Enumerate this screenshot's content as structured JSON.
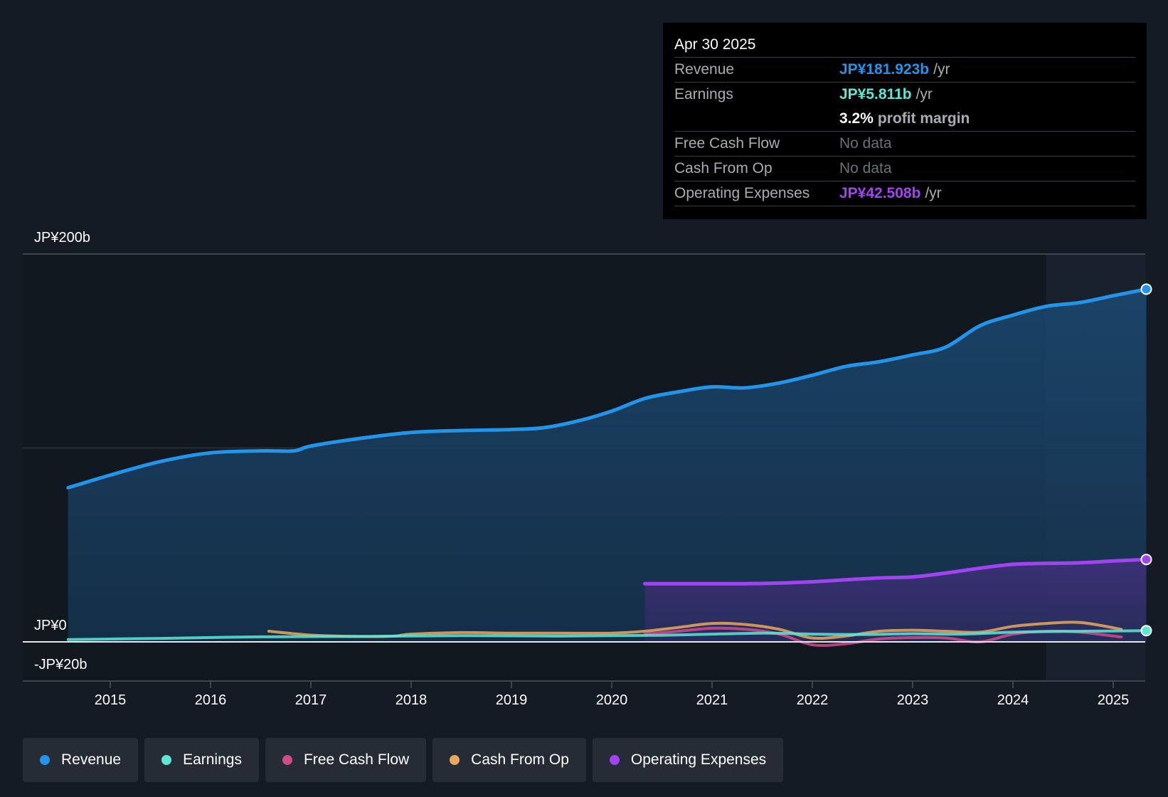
{
  "tooltip": {
    "date": "Apr 30 2025",
    "rows": {
      "revenue": {
        "label": "Revenue",
        "value": "JP¥181.923b",
        "unit": "/yr",
        "color": "#2394e8"
      },
      "earnings": {
        "label": "Earnings",
        "value": "JP¥5.811b",
        "unit": "/yr",
        "color": "#5ee6d5"
      },
      "margin": {
        "value": "3.2%",
        "unit": "profit margin"
      },
      "fcf": {
        "label": "Free Cash Flow",
        "value": "No data"
      },
      "cfo": {
        "label": "Cash From Op",
        "value": "No data"
      },
      "opex": {
        "label": "Operating Expenses",
        "value": "JP¥42.508b",
        "unit": "/yr",
        "color": "#a044f0"
      }
    }
  },
  "legend": [
    {
      "label": "Revenue",
      "color": "#2394e8"
    },
    {
      "label": "Earnings",
      "color": "#5ee6d5"
    },
    {
      "label": "Free Cash Flow",
      "color": "#d14b8c"
    },
    {
      "label": "Cash From Op",
      "color": "#e8a95e"
    },
    {
      "label": "Operating Expenses",
      "color": "#a044f0"
    }
  ],
  "chart_data": {
    "type": "line",
    "title": "",
    "xlabel": "",
    "ylabel": "",
    "y_tick_labels": [
      "JP¥200b",
      "JP¥0",
      "-JP¥20b"
    ],
    "ylim": [
      -20,
      200
    ],
    "xlim": [
      2014.1,
      2025.4
    ],
    "x_ticks": [
      2015,
      2016,
      2017,
      2018,
      2019,
      2020,
      2021,
      2022,
      2023,
      2024,
      2025
    ],
    "forecast_start": 2024.33,
    "series": [
      {
        "name": "Revenue",
        "color": "#2394e8",
        "fill": true,
        "x": [
          2014.58,
          2015.0,
          2015.5,
          2016.0,
          2016.5,
          2016.83,
          2017.0,
          2017.5,
          2018.0,
          2018.5,
          2019.0,
          2019.33,
          2019.67,
          2020.0,
          2020.33,
          2020.67,
          2021.0,
          2021.33,
          2021.67,
          2022.0,
          2022.33,
          2022.67,
          2023.0,
          2023.33,
          2023.67,
          2024.0,
          2024.33,
          2024.67,
          2025.0,
          2025.33
        ],
        "y": [
          79.5,
          86,
          93,
          97.5,
          98.5,
          98.5,
          101,
          105,
          108,
          109,
          109.5,
          110.5,
          114,
          119,
          125.5,
          129,
          131.5,
          131,
          133.5,
          137.5,
          142,
          144.5,
          148,
          152,
          163,
          168.5,
          173,
          175,
          178.5,
          181.9
        ]
      },
      {
        "name": "Earnings",
        "color": "#5ee6d5",
        "fill": false,
        "x": [
          2014.58,
          2015.5,
          2016.5,
          2017.5,
          2018.5,
          2019.5,
          2020.5,
          2021.5,
          2022.0,
          2022.5,
          2023.0,
          2023.5,
          2024.0,
          2024.5,
          2025.0,
          2025.33
        ],
        "y": [
          1.2,
          1.8,
          2.6,
          2.8,
          3.2,
          3.0,
          3.4,
          4.5,
          4.0,
          3.8,
          4.2,
          4.0,
          5.0,
          5.4,
          5.6,
          5.8
        ]
      },
      {
        "name": "Free Cash Flow",
        "color": "#d14b8c",
        "fill": false,
        "x": [
          2020.33,
          2020.67,
          2021.0,
          2021.33,
          2021.67,
          2022.0,
          2022.33,
          2022.67,
          2023.0,
          2023.33,
          2023.67,
          2024.0,
          2024.33,
          2024.67,
          2025.08
        ],
        "y": [
          4.0,
          5.5,
          7.0,
          6.5,
          4.0,
          -1.5,
          -1.0,
          1.5,
          2.2,
          2.0,
          0.0,
          4.0,
          5.5,
          5.0,
          2.5
        ]
      },
      {
        "name": "Cash From Op",
        "color": "#e8a95e",
        "fill": false,
        "x": [
          2016.58,
          2017.0,
          2017.5,
          2017.83,
          2018.0,
          2018.5,
          2019.0,
          2019.5,
          2020.0,
          2020.33,
          2020.67,
          2021.0,
          2021.33,
          2021.67,
          2022.0,
          2022.33,
          2022.67,
          2023.0,
          2023.33,
          2023.67,
          2024.0,
          2024.33,
          2024.67,
          2025.08
        ],
        "y": [
          5.5,
          3.5,
          2.8,
          3.0,
          4.0,
          4.8,
          4.5,
          4.5,
          4.5,
          5.5,
          7.5,
          9.5,
          9.0,
          6.5,
          2.0,
          3.0,
          5.5,
          6.0,
          5.5,
          5.0,
          8.0,
          9.5,
          10.0,
          6.5
        ]
      },
      {
        "name": "Operating Expenses",
        "color": "#a044f0",
        "fill": true,
        "x": [
          2020.33,
          2020.67,
          2021.0,
          2021.33,
          2021.67,
          2022.0,
          2022.33,
          2022.67,
          2023.0,
          2023.33,
          2023.67,
          2024.0,
          2024.33,
          2024.67,
          2025.0,
          2025.33
        ],
        "y": [
          30.0,
          30.0,
          30.0,
          30.0,
          30.3,
          31.0,
          32.0,
          33.0,
          33.5,
          35.5,
          38.0,
          40.0,
          40.5,
          40.8,
          41.7,
          42.5
        ]
      }
    ]
  }
}
